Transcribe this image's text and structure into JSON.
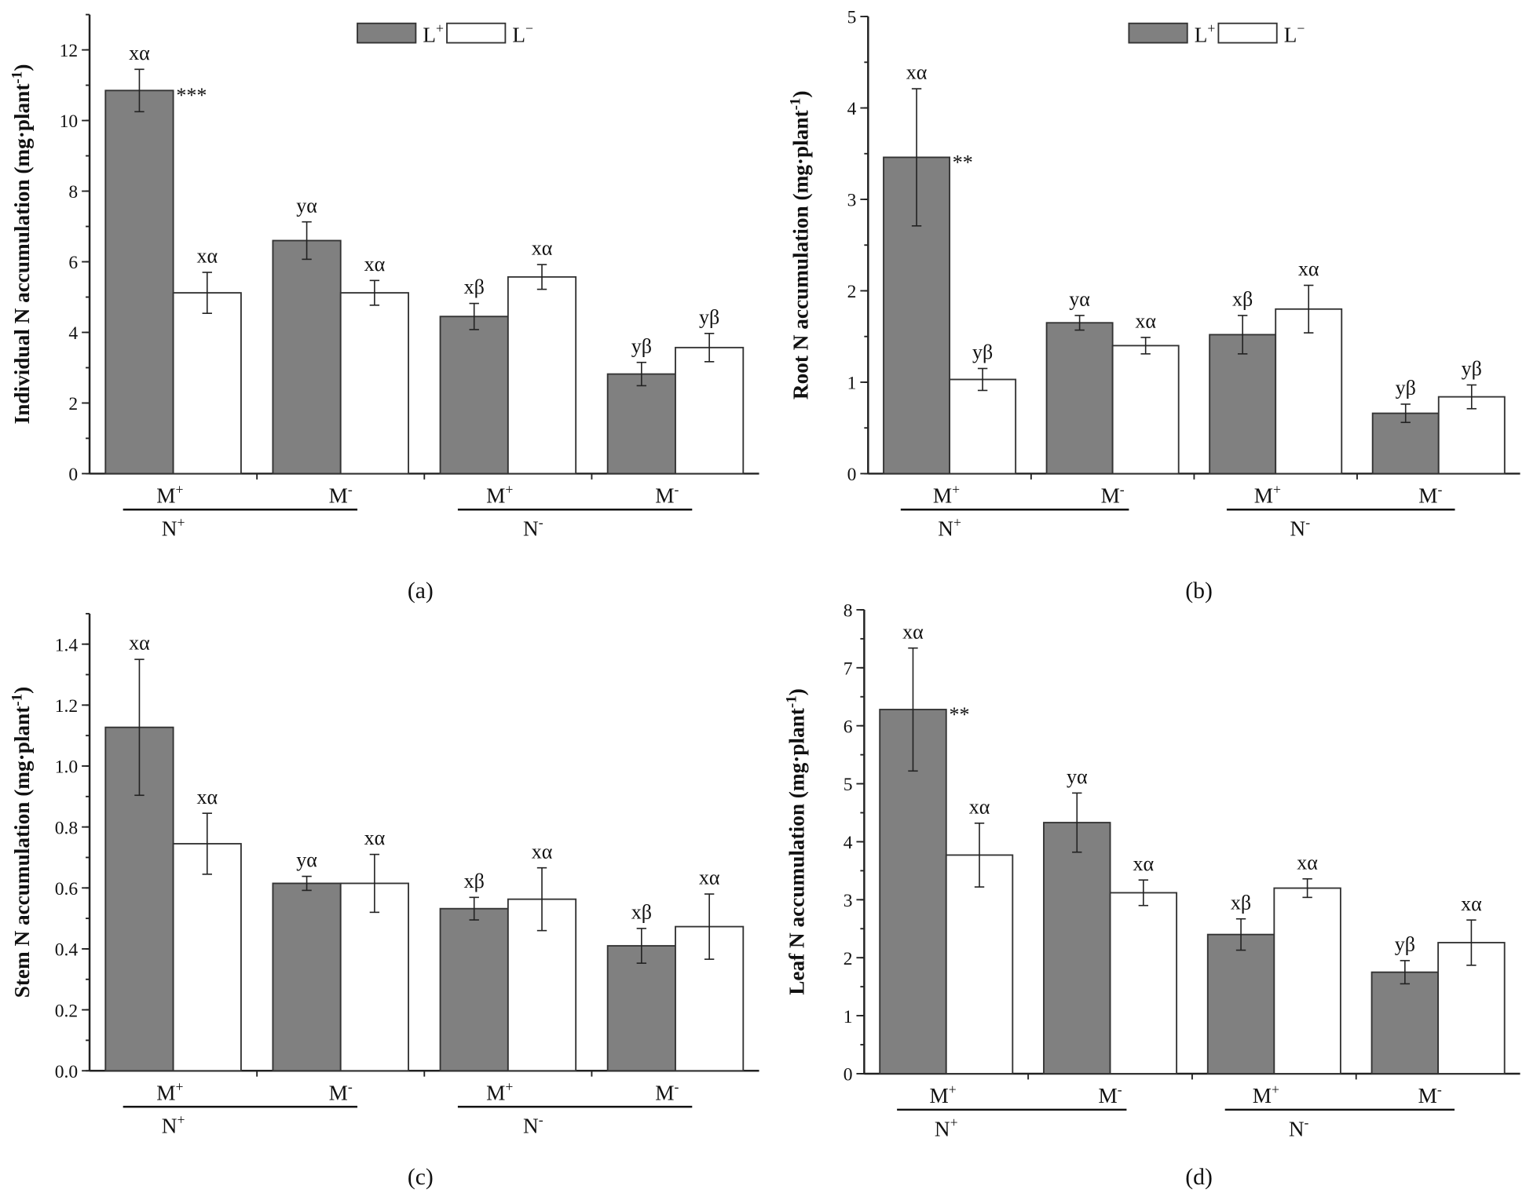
{
  "chart_data": [
    {
      "type": "bar",
      "caption": "(a)",
      "ylabel_main": "Individual N accumulation (mg·plant",
      "ylabel_sup": "-1",
      "ylabel_end": ")",
      "ylim": [
        0,
        13
      ],
      "yticks": [
        "0",
        "2",
        "4",
        "6",
        "8",
        "10",
        "12"
      ],
      "ytick_values": [
        0,
        2,
        4,
        6,
        8,
        10,
        12
      ],
      "minor_step": 1,
      "legend": true,
      "series": [
        {
          "name": "L",
          "sup": "+",
          "color": "#808080",
          "values": [
            10.85,
            6.6,
            4.45,
            2.82
          ],
          "errors": [
            0.6,
            0.53,
            0.37,
            0.33
          ],
          "letters": [
            "xα",
            "yα",
            "xβ",
            "yβ"
          ],
          "sig": [
            "***",
            "",
            "",
            ""
          ]
        },
        {
          "name": "L",
          "sup": "−",
          "color": "#ffffff",
          "values": [
            5.12,
            5.12,
            5.57,
            3.57
          ],
          "errors": [
            0.58,
            0.35,
            0.35,
            0.4
          ],
          "letters": [
            "xα",
            "xα",
            "xα",
            "yβ"
          ],
          "sig": [
            "",
            "",
            "",
            ""
          ]
        }
      ]
    },
    {
      "type": "bar",
      "caption": "(b)",
      "ylabel_main": "Root N accumulation (mg·plant",
      "ylabel_sup": "-1",
      "ylabel_end": ")",
      "ylim": [
        0,
        5
      ],
      "yticks": [
        "0",
        "1",
        "2",
        "3",
        "4",
        "5"
      ],
      "ytick_values": [
        0,
        1,
        2,
        3,
        4,
        5
      ],
      "minor_step": 0.5,
      "legend": true,
      "series": [
        {
          "name": "L",
          "sup": "+",
          "color": "#808080",
          "values": [
            3.46,
            1.65,
            1.52,
            0.66
          ],
          "errors": [
            0.75,
            0.08,
            0.21,
            0.1
          ],
          "letters": [
            "xα",
            "yα",
            "xβ",
            "yβ"
          ],
          "sig": [
            "**",
            "",
            "",
            ""
          ]
        },
        {
          "name": "L",
          "sup": "−",
          "color": "#ffffff",
          "values": [
            1.03,
            1.4,
            1.8,
            0.84
          ],
          "errors": [
            0.12,
            0.09,
            0.26,
            0.13
          ],
          "letters": [
            "yβ",
            "xα",
            "xα",
            "yβ"
          ],
          "sig": [
            "",
            "",
            "",
            ""
          ]
        }
      ]
    },
    {
      "type": "bar",
      "caption": "(c)",
      "ylabel_main": "Stem N accumulation (mg·plant",
      "ylabel_sup": "-1",
      "ylabel_end": ")",
      "ylim": [
        0,
        1.5
      ],
      "yticks": [
        "0.0",
        "0.2",
        "0.4",
        "0.6",
        "0.8",
        "1.0",
        "1.2",
        "1.4"
      ],
      "ytick_values": [
        0,
        0.2,
        0.4,
        0.6,
        0.8,
        1.0,
        1.2,
        1.4
      ],
      "minor_step": 0.1,
      "legend": false,
      "series": [
        {
          "name": "L",
          "sup": "+",
          "color": "#808080",
          "values": [
            1.127,
            0.615,
            0.532,
            0.41
          ],
          "errors": [
            0.223,
            0.023,
            0.037,
            0.057
          ],
          "letters": [
            "xα",
            "yα",
            "xβ",
            "xβ"
          ],
          "sig": [
            "",
            "",
            "",
            ""
          ]
        },
        {
          "name": "L",
          "sup": "−",
          "color": "#ffffff",
          "values": [
            0.745,
            0.615,
            0.563,
            0.473
          ],
          "errors": [
            0.1,
            0.095,
            0.103,
            0.107
          ],
          "letters": [
            "xα",
            "xα",
            "xα",
            "xα"
          ],
          "sig": [
            "",
            "",
            "",
            ""
          ]
        }
      ]
    },
    {
      "type": "bar",
      "caption": "(d)",
      "ylabel_main": "Leaf N accumulation (mg·plant",
      "ylabel_sup": "-1",
      "ylabel_end": ")",
      "ylim": [
        0,
        8
      ],
      "yticks": [
        "0",
        "1",
        "2",
        "3",
        "4",
        "5",
        "6",
        "7",
        "8"
      ],
      "ytick_values": [
        0,
        1,
        2,
        3,
        4,
        5,
        6,
        7,
        8
      ],
      "minor_step": 0.5,
      "legend": false,
      "series": [
        {
          "name": "L",
          "sup": "+",
          "color": "#808080",
          "values": [
            6.28,
            4.33,
            2.4,
            1.75
          ],
          "errors": [
            1.06,
            0.51,
            0.27,
            0.2
          ],
          "letters": [
            "xα",
            "yα",
            "xβ",
            "yβ"
          ],
          "sig": [
            "**",
            "",
            "*",
            ""
          ]
        },
        {
          "name": "L",
          "sup": "−",
          "color": "#ffffff",
          "values": [
            3.77,
            3.12,
            3.2,
            2.26
          ],
          "errors": [
            0.55,
            0.22,
            0.16,
            0.39
          ],
          "letters": [
            "xα",
            "xα",
            "xα",
            "xα"
          ],
          "sig": [
            "",
            "",
            "",
            ""
          ]
        }
      ]
    }
  ],
  "x_labels": [
    {
      "text": "M",
      "sup": "+"
    },
    {
      "text": "M",
      "sup": "-"
    },
    {
      "text": "M",
      "sup": "+"
    },
    {
      "text": "M",
      "sup": "-"
    }
  ],
  "group_labels": [
    {
      "text": "N",
      "sup": "+"
    },
    {
      "text": "N",
      "sup": "-"
    }
  ]
}
